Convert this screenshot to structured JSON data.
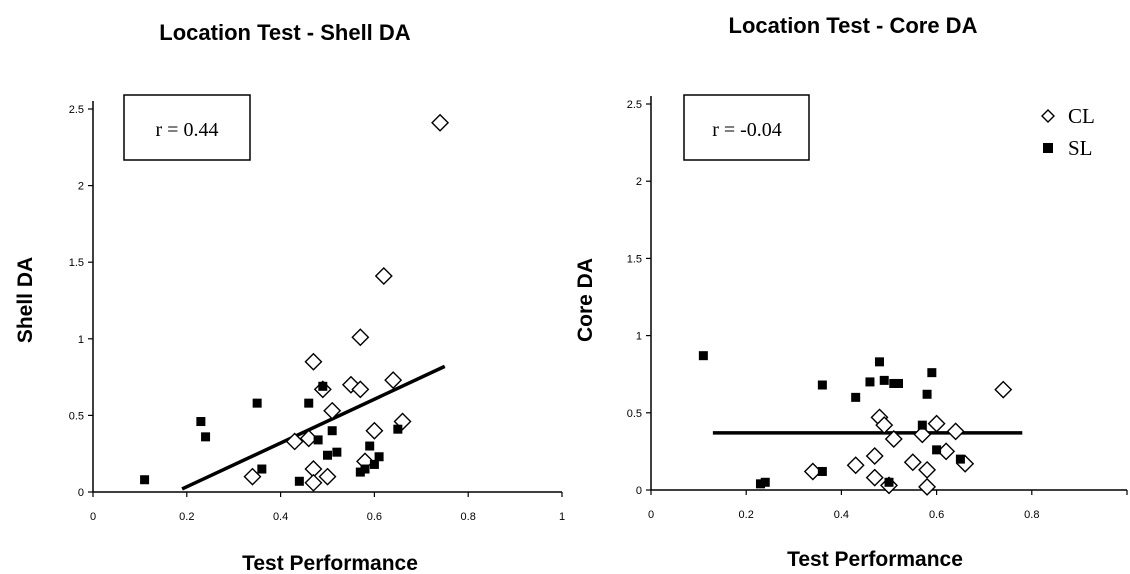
{
  "chart_data": [
    {
      "type": "scatter",
      "title": "Location Test - Shell DA",
      "xlabel": "Test Performance",
      "ylabel": "Shell DA",
      "xlim": [
        0,
        1
      ],
      "ylim": [
        0,
        2.5
      ],
      "xticks": [
        "0",
        "0.2",
        "0.4",
        "0.6",
        "0.8",
        "1"
      ],
      "yticks": [
        "0",
        "0.5",
        "1",
        "1.5",
        "2",
        "2.5"
      ],
      "annotation": "r = 0.44",
      "legend": null,
      "series": [
        {
          "name": "CL",
          "marker": "open-diamond",
          "points": [
            [
              0.34,
              0.1
            ],
            [
              0.43,
              0.33
            ],
            [
              0.46,
              0.35
            ],
            [
              0.47,
              0.85
            ],
            [
              0.49,
              0.67
            ],
            [
              0.47,
              0.15
            ],
            [
              0.47,
              0.06
            ],
            [
              0.5,
              0.1
            ],
            [
              0.51,
              0.53
            ],
            [
              0.55,
              0.7
            ],
            [
              0.57,
              0.67
            ],
            [
              0.57,
              1.01
            ],
            [
              0.58,
              0.2
            ],
            [
              0.6,
              0.4
            ],
            [
              0.62,
              1.41
            ],
            [
              0.64,
              0.73
            ],
            [
              0.66,
              0.46
            ],
            [
              0.74,
              2.41
            ]
          ]
        },
        {
          "name": "SL",
          "marker": "filled-square",
          "points": [
            [
              0.11,
              0.08
            ],
            [
              0.23,
              0.46
            ],
            [
              0.24,
              0.36
            ],
            [
              0.35,
              0.58
            ],
            [
              0.36,
              0.15
            ],
            [
              0.44,
              0.07
            ],
            [
              0.46,
              0.58
            ],
            [
              0.48,
              0.34
            ],
            [
              0.49,
              0.69
            ],
            [
              0.5,
              0.24
            ],
            [
              0.51,
              0.4
            ],
            [
              0.52,
              0.26
            ],
            [
              0.57,
              0.13
            ],
            [
              0.58,
              0.15
            ],
            [
              0.59,
              0.3
            ],
            [
              0.6,
              0.18
            ],
            [
              0.61,
              0.23
            ],
            [
              0.65,
              0.41
            ]
          ]
        }
      ],
      "trendline": [
        [
          0.19,
          0.02
        ],
        [
          0.75,
          0.82
        ]
      ]
    },
    {
      "type": "scatter",
      "title": "Location Test - Core DA",
      "xlabel": "Test Performance",
      "ylabel": "Core DA",
      "xlim": [
        0,
        1
      ],
      "ylim": [
        0,
        2.5
      ],
      "xticks": [
        "0",
        "0.2",
        "0.4",
        "0.6",
        "0.8",
        ""
      ],
      "yticks": [
        "0",
        "0.5",
        "1",
        "1.5",
        "2",
        "2.5"
      ],
      "annotation": "r = -0.04",
      "legend": [
        {
          "label": "CL",
          "marker": "open-diamond"
        },
        {
          "label": "SL",
          "marker": "filled-square"
        }
      ],
      "series": [
        {
          "name": "CL",
          "marker": "open-diamond",
          "points": [
            [
              0.34,
              0.12
            ],
            [
              0.43,
              0.16
            ],
            [
              0.47,
              0.22
            ],
            [
              0.48,
              0.47
            ],
            [
              0.49,
              0.42
            ],
            [
              0.47,
              0.08
            ],
            [
              0.5,
              0.03
            ],
            [
              0.51,
              0.33
            ],
            [
              0.55,
              0.18
            ],
            [
              0.57,
              0.36
            ],
            [
              0.58,
              0.13
            ],
            [
              0.58,
              0.02
            ],
            [
              0.6,
              0.43
            ],
            [
              0.62,
              0.25
            ],
            [
              0.64,
              0.38
            ],
            [
              0.66,
              0.17
            ],
            [
              0.74,
              0.65
            ]
          ]
        },
        {
          "name": "SL",
          "marker": "filled-square",
          "points": [
            [
              0.11,
              0.87
            ],
            [
              0.23,
              0.04
            ],
            [
              0.24,
              0.05
            ],
            [
              0.36,
              0.68
            ],
            [
              0.36,
              0.12
            ],
            [
              0.43,
              0.6
            ],
            [
              0.46,
              0.7
            ],
            [
              0.48,
              0.83
            ],
            [
              0.49,
              0.71
            ],
            [
              0.5,
              0.05
            ],
            [
              0.51,
              0.69
            ],
            [
              0.52,
              0.69
            ],
            [
              0.57,
              0.42
            ],
            [
              0.58,
              0.62
            ],
            [
              0.59,
              0.76
            ],
            [
              0.6,
              0.26
            ],
            [
              0.65,
              0.2
            ]
          ]
        }
      ],
      "trendline": [
        [
          0.13,
          0.37
        ],
        [
          0.78,
          0.37
        ]
      ]
    }
  ]
}
